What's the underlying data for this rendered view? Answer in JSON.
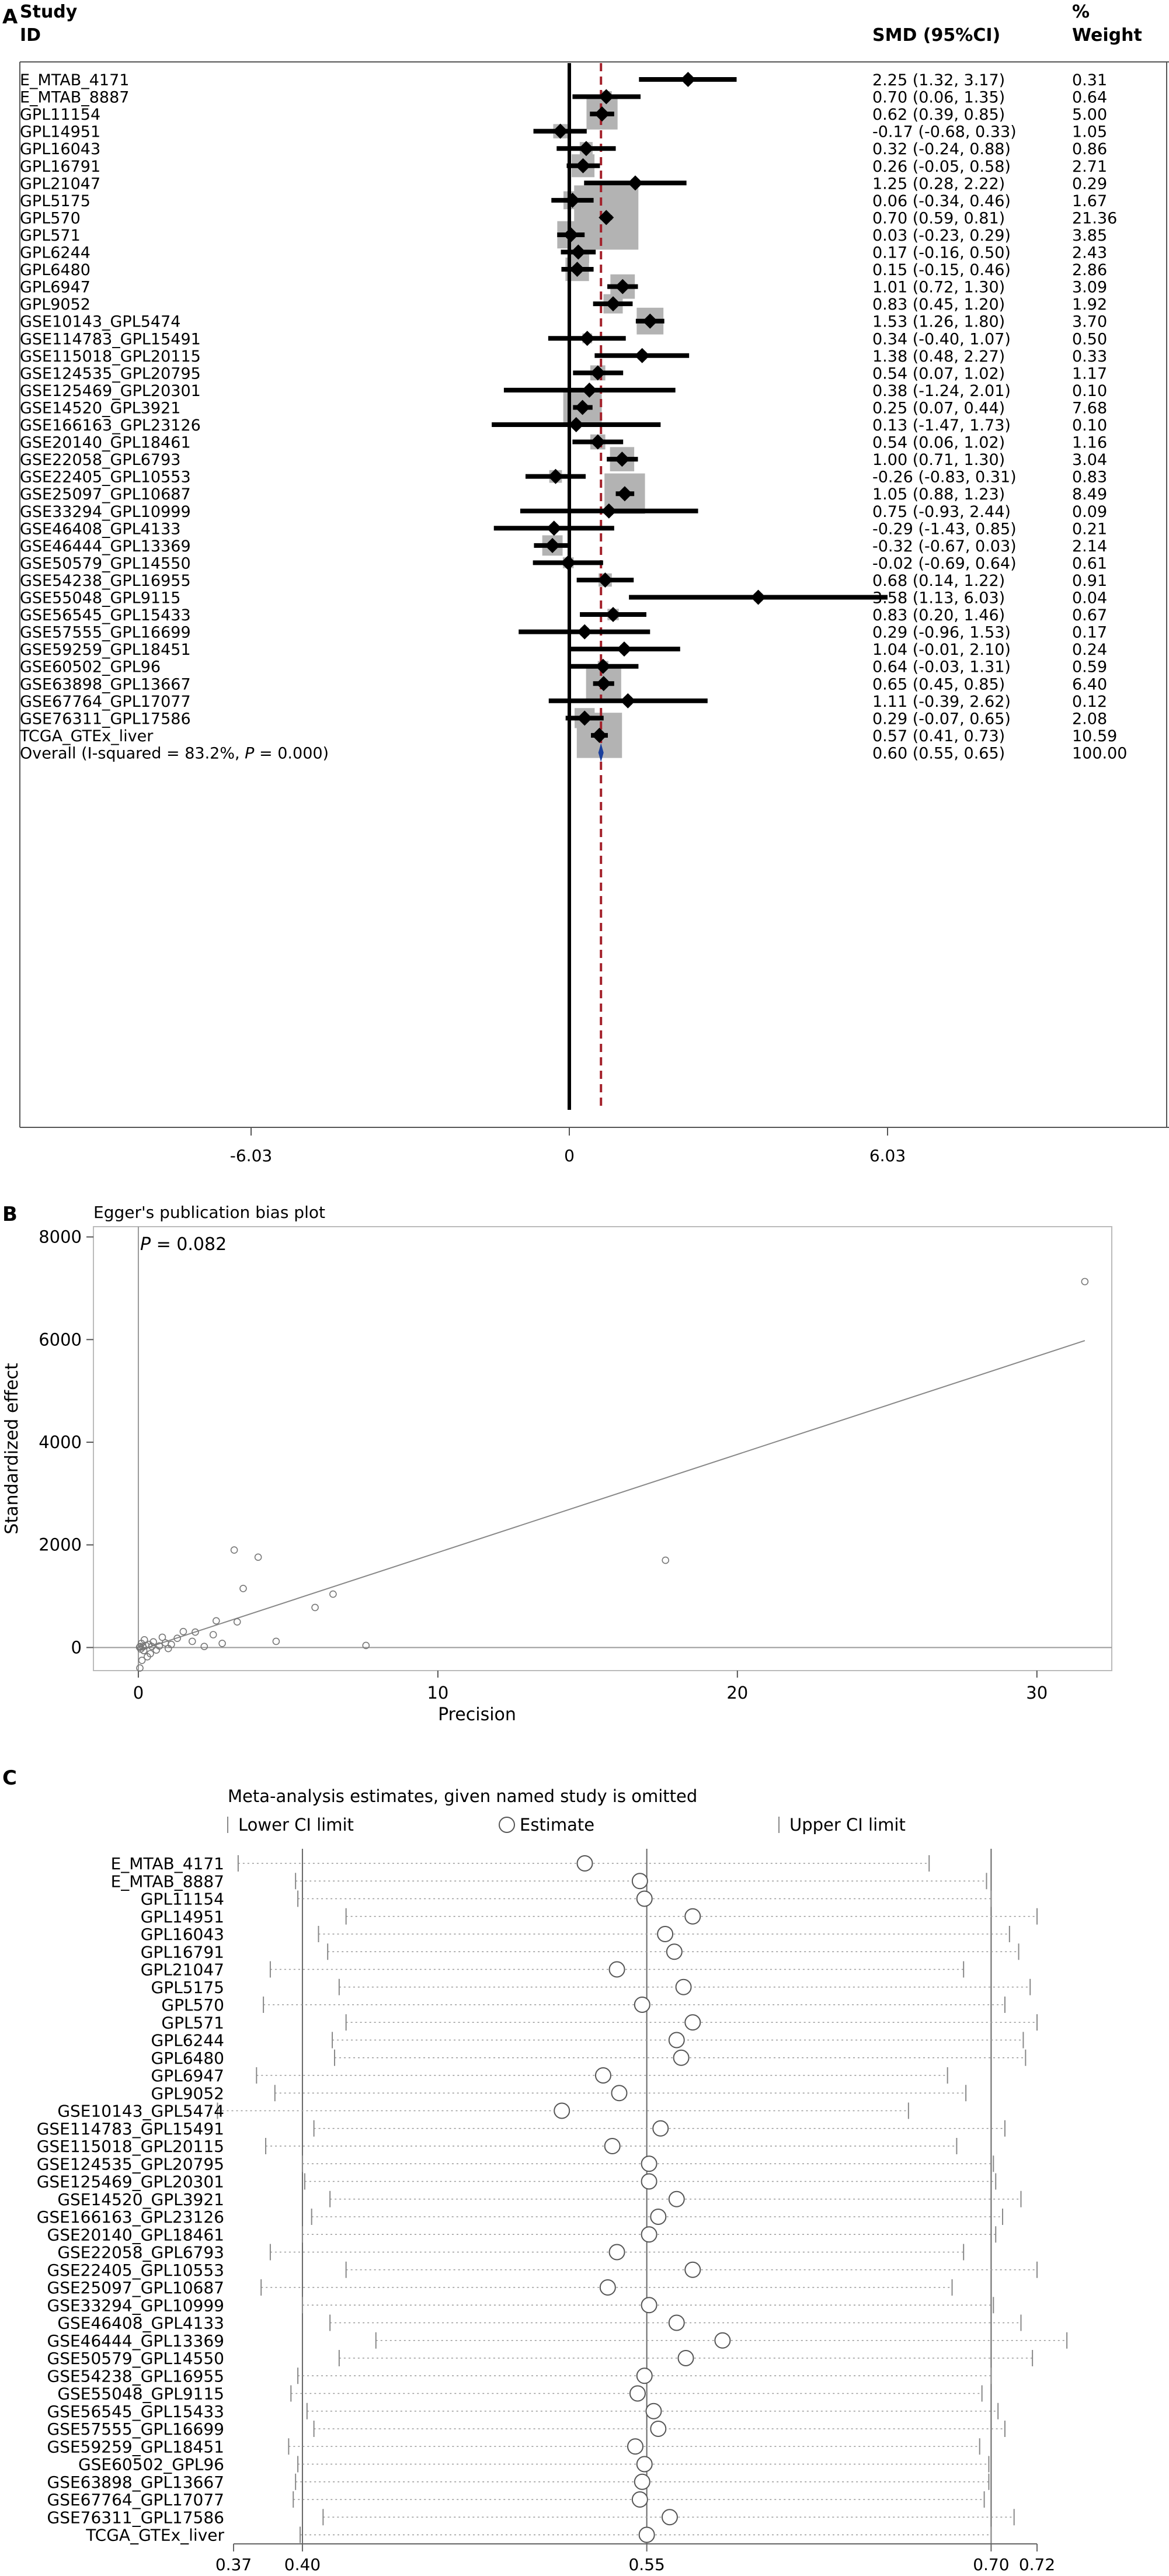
{
  "chart_data": [
    {
      "type": "forest",
      "panel_label": "A",
      "headers": {
        "study": "Study",
        "id": "ID",
        "smd": "SMD (95%CI)",
        "pct": "%",
        "weight": "Weight"
      },
      "xticks": [
        "-6.03",
        "0",
        "6.03"
      ],
      "xlim": [
        -6.03,
        6.03
      ],
      "overall_line": 0.6,
      "rows": [
        {
          "id": "E_MTAB_4171",
          "smd": 2.25,
          "lo": 1.32,
          "hi": 3.17,
          "w": 0.31,
          "ci": "2.25 (1.32, 3.17)",
          "wt": "0.31"
        },
        {
          "id": "E_MTAB_8887",
          "smd": 0.7,
          "lo": 0.06,
          "hi": 1.35,
          "w": 0.64,
          "ci": "0.70 (0.06, 1.35)",
          "wt": "0.64"
        },
        {
          "id": "GPL11154",
          "smd": 0.62,
          "lo": 0.39,
          "hi": 0.85,
          "w": 5.0,
          "ci": "0.62 (0.39, 0.85)",
          "wt": "5.00"
        },
        {
          "id": "GPL14951",
          "smd": -0.17,
          "lo": -0.68,
          "hi": 0.33,
          "w": 1.05,
          "ci": "-0.17 (-0.68, 0.33)",
          "wt": "1.05"
        },
        {
          "id": "GPL16043",
          "smd": 0.32,
          "lo": -0.24,
          "hi": 0.88,
          "w": 0.86,
          "ci": "0.32 (-0.24, 0.88)",
          "wt": "0.86"
        },
        {
          "id": "GPL16791",
          "smd": 0.26,
          "lo": -0.05,
          "hi": 0.58,
          "w": 2.71,
          "ci": "0.26 (-0.05, 0.58)",
          "wt": "2.71"
        },
        {
          "id": "GPL21047",
          "smd": 1.25,
          "lo": 0.28,
          "hi": 2.22,
          "w": 0.29,
          "ci": "1.25 (0.28, 2.22)",
          "wt": "0.29"
        },
        {
          "id": "GPL5175",
          "smd": 0.06,
          "lo": -0.34,
          "hi": 0.46,
          "w": 1.67,
          "ci": "0.06 (-0.34, 0.46)",
          "wt": "1.67"
        },
        {
          "id": "GPL570",
          "smd": 0.7,
          "lo": 0.59,
          "hi": 0.81,
          "w": 21.36,
          "ci": "0.70 (0.59, 0.81)",
          "wt": "21.36"
        },
        {
          "id": "GPL571",
          "smd": 0.03,
          "lo": -0.23,
          "hi": 0.29,
          "w": 3.85,
          "ci": "0.03 (-0.23, 0.29)",
          "wt": "3.85"
        },
        {
          "id": "GPL6244",
          "smd": 0.17,
          "lo": -0.16,
          "hi": 0.5,
          "w": 2.43,
          "ci": "0.17 (-0.16, 0.50)",
          "wt": "2.43"
        },
        {
          "id": "GPL6480",
          "smd": 0.15,
          "lo": -0.15,
          "hi": 0.46,
          "w": 2.86,
          "ci": "0.15 (-0.15, 0.46)",
          "wt": "2.86"
        },
        {
          "id": "GPL6947",
          "smd": 1.01,
          "lo": 0.72,
          "hi": 1.3,
          "w": 3.09,
          "ci": "1.01 (0.72, 1.30)",
          "wt": "3.09"
        },
        {
          "id": "GPL9052",
          "smd": 0.83,
          "lo": 0.45,
          "hi": 1.2,
          "w": 1.92,
          "ci": "0.83 (0.45, 1.20)",
          "wt": "1.92"
        },
        {
          "id": "GSE10143_GPL5474",
          "smd": 1.53,
          "lo": 1.26,
          "hi": 1.8,
          "w": 3.7,
          "ci": "1.53 (1.26, 1.80)",
          "wt": "3.70"
        },
        {
          "id": "GSE114783_GPL15491",
          "smd": 0.34,
          "lo": -0.4,
          "hi": 1.07,
          "w": 0.5,
          "ci": "0.34 (-0.40, 1.07)",
          "wt": "0.50"
        },
        {
          "id": "GSE115018_GPL20115",
          "smd": 1.38,
          "lo": 0.48,
          "hi": 2.27,
          "w": 0.33,
          "ci": "1.38 (0.48, 2.27)",
          "wt": "0.33"
        },
        {
          "id": "GSE124535_GPL20795",
          "smd": 0.54,
          "lo": 0.07,
          "hi": 1.02,
          "w": 1.17,
          "ci": "0.54 (0.07, 1.02)",
          "wt": "1.17"
        },
        {
          "id": "GSE125469_GPL20301",
          "smd": 0.38,
          "lo": -1.24,
          "hi": 2.01,
          "w": 0.1,
          "ci": "0.38 (-1.24, 2.01)",
          "wt": "0.10"
        },
        {
          "id": "GSE14520_GPL3921",
          "smd": 0.25,
          "lo": 0.07,
          "hi": 0.44,
          "w": 7.68,
          "ci": "0.25 (0.07, 0.44)",
          "wt": "7.68"
        },
        {
          "id": "GSE166163_GPL23126",
          "smd": 0.13,
          "lo": -1.47,
          "hi": 1.73,
          "w": 0.1,
          "ci": "0.13 (-1.47, 1.73)",
          "wt": "0.10"
        },
        {
          "id": "GSE20140_GPL18461",
          "smd": 0.54,
          "lo": 0.06,
          "hi": 1.02,
          "w": 1.16,
          "ci": "0.54 (0.06, 1.02)",
          "wt": "1.16"
        },
        {
          "id": "GSE22058_GPL6793",
          "smd": 1.0,
          "lo": 0.71,
          "hi": 1.3,
          "w": 3.04,
          "ci": "1.00 (0.71, 1.30)",
          "wt": "3.04"
        },
        {
          "id": "GSE22405_GPL10553",
          "smd": -0.26,
          "lo": -0.83,
          "hi": 0.31,
          "w": 0.83,
          "ci": "-0.26 (-0.83, 0.31)",
          "wt": "0.83"
        },
        {
          "id": "GSE25097_GPL10687",
          "smd": 1.05,
          "lo": 0.88,
          "hi": 1.23,
          "w": 8.49,
          "ci": "1.05 (0.88, 1.23)",
          "wt": "8.49"
        },
        {
          "id": "GSE33294_GPL10999",
          "smd": 0.75,
          "lo": -0.93,
          "hi": 2.44,
          "w": 0.09,
          "ci": "0.75 (-0.93, 2.44)",
          "wt": "0.09"
        },
        {
          "id": "GSE46408_GPL4133",
          "smd": -0.29,
          "lo": -1.43,
          "hi": 0.85,
          "w": 0.21,
          "ci": "-0.29 (-1.43, 0.85)",
          "wt": "0.21"
        },
        {
          "id": "GSE46444_GPL13369",
          "smd": -0.32,
          "lo": -0.67,
          "hi": 0.03,
          "w": 2.14,
          "ci": "-0.32 (-0.67, 0.03)",
          "wt": "2.14"
        },
        {
          "id": "GSE50579_GPL14550",
          "smd": -0.02,
          "lo": -0.69,
          "hi": 0.64,
          "w": 0.61,
          "ci": "-0.02 (-0.69, 0.64)",
          "wt": "0.61"
        },
        {
          "id": "GSE54238_GPL16955",
          "smd": 0.68,
          "lo": 0.14,
          "hi": 1.22,
          "w": 0.91,
          "ci": "0.68 (0.14, 1.22)",
          "wt": "0.91"
        },
        {
          "id": "GSE55048_GPL9115",
          "smd": 3.58,
          "lo": 1.13,
          "hi": 6.03,
          "w": 0.04,
          "ci": "3.58 (1.13, 6.03)",
          "wt": "0.04"
        },
        {
          "id": "GSE56545_GPL15433",
          "smd": 0.83,
          "lo": 0.2,
          "hi": 1.46,
          "w": 0.67,
          "ci": "0.83 (0.20, 1.46)",
          "wt": "0.67"
        },
        {
          "id": "GSE57555_GPL16699",
          "smd": 0.29,
          "lo": -0.96,
          "hi": 1.53,
          "w": 0.17,
          "ci": "0.29 (-0.96, 1.53)",
          "wt": "0.17"
        },
        {
          "id": "GSE59259_GPL18451",
          "smd": 1.04,
          "lo": -0.01,
          "hi": 2.1,
          "w": 0.24,
          "ci": "1.04 (-0.01, 2.10)",
          "wt": "0.24"
        },
        {
          "id": "GSE60502_GPL96",
          "smd": 0.64,
          "lo": -0.03,
          "hi": 1.31,
          "w": 0.59,
          "ci": "0.64 (-0.03, 1.31)",
          "wt": "0.59"
        },
        {
          "id": "GSE63898_GPL13667",
          "smd": 0.65,
          "lo": 0.45,
          "hi": 0.85,
          "w": 6.4,
          "ci": "0.65 (0.45, 0.85)",
          "wt": "6.40"
        },
        {
          "id": "GSE67764_GPL17077",
          "smd": 1.11,
          "lo": -0.39,
          "hi": 2.62,
          "w": 0.12,
          "ci": "1.11 (-0.39, 2.62)",
          "wt": "0.12"
        },
        {
          "id": "GSE76311_GPL17586",
          "smd": 0.29,
          "lo": -0.07,
          "hi": 0.65,
          "w": 2.08,
          "ci": "0.29 (-0.07, 0.65)",
          "wt": "2.08"
        },
        {
          "id": "TCGA_GTEx_liver",
          "smd": 0.57,
          "lo": 0.41,
          "hi": 0.73,
          "w": 10.59,
          "ci": "0.57 (0.41, 0.73)",
          "wt": "10.59"
        }
      ],
      "overall": {
        "label_prefix": "Overall  (I-squared = 83.2%, ",
        "label_p": "P",
        "label_suffix": " = 0.000)",
        "smd": 0.6,
        "lo": 0.55,
        "hi": 0.65,
        "ci": "0.60 (0.55, 0.65)",
        "wt": "100.00"
      }
    },
    {
      "type": "scatter",
      "panel_label": "B",
      "title": "Egger's publication bias plot",
      "annotation_p": "P",
      "annotation_val": " = 0.082",
      "xlabel": "Precision",
      "ylabel": "Standardized effect",
      "xlim": [
        -1.5,
        32.5
      ],
      "ylim": [
        -450,
        8200
      ],
      "xticks": [
        0,
        10,
        20,
        30
      ],
      "yticks": [
        0,
        2000,
        4000,
        6000,
        8000
      ],
      "regression": {
        "x0": 0,
        "y0": -60,
        "x1": 31.6,
        "y1": 5980
      },
      "points": [
        [
          31.6,
          7130
        ],
        [
          17.6,
          1700
        ],
        [
          7.6,
          40
        ],
        [
          6.5,
          1040
        ],
        [
          5.9,
          780
        ],
        [
          4.0,
          1760
        ],
        [
          3.2,
          1900
        ],
        [
          3.5,
          1150
        ],
        [
          3.3,
          500
        ],
        [
          2.5,
          250
        ],
        [
          2.8,
          80
        ],
        [
          2.2,
          20
        ],
        [
          1.8,
          120
        ],
        [
          1.5,
          310
        ],
        [
          1.3,
          180
        ],
        [
          1.1,
          60
        ],
        [
          1.0,
          -20
        ],
        [
          0.9,
          90
        ],
        [
          0.8,
          200
        ],
        [
          0.7,
          30
        ],
        [
          0.6,
          -50
        ],
        [
          0.5,
          110
        ],
        [
          0.45,
          20
        ],
        [
          0.4,
          -120
        ],
        [
          0.35,
          60
        ],
        [
          0.3,
          -180
        ],
        [
          0.25,
          40
        ],
        [
          0.2,
          150
        ],
        [
          0.18,
          -60
        ],
        [
          0.15,
          10
        ],
        [
          0.12,
          -250
        ],
        [
          0.1,
          80
        ],
        [
          0.08,
          -30
        ],
        [
          0.06,
          20
        ],
        [
          0.05,
          -400
        ],
        [
          0.04,
          5
        ],
        [
          1.9,
          300
        ],
        [
          2.6,
          520
        ],
        [
          4.6,
          120
        ]
      ]
    },
    {
      "type": "sensitivity",
      "panel_label": "C",
      "title": "Meta-analysis estimates, given named study is omitted",
      "legend": [
        "Lower CI limit",
        "Estimate",
        "Upper CI limit"
      ],
      "xlim": [
        0.37,
        0.72
      ],
      "xticks": [
        "0.37",
        "0.40",
        "0.55",
        "0.70",
        "0.72"
      ],
      "vlines": [
        0.4,
        0.55,
        0.7
      ],
      "rows": [
        {
          "id": "E_MTAB_4171",
          "est": 0.523,
          "lo": 0.372,
          "hi": 0.673
        },
        {
          "id": "E_MTAB_8887",
          "est": 0.547,
          "lo": 0.397,
          "hi": 0.698
        },
        {
          "id": "GPL11154",
          "est": 0.549,
          "lo": 0.398,
          "hi": 0.7
        },
        {
          "id": "GPL14951",
          "est": 0.57,
          "lo": 0.419,
          "hi": 0.72
        },
        {
          "id": "GPL16043",
          "est": 0.558,
          "lo": 0.407,
          "hi": 0.708
        },
        {
          "id": "GPL16791",
          "est": 0.562,
          "lo": 0.411,
          "hi": 0.712
        },
        {
          "id": "GPL21047",
          "est": 0.537,
          "lo": 0.386,
          "hi": 0.688
        },
        {
          "id": "GPL5175",
          "est": 0.566,
          "lo": 0.416,
          "hi": 0.717
        },
        {
          "id": "GPL570",
          "est": 0.548,
          "lo": 0.383,
          "hi": 0.706
        },
        {
          "id": "GPL571",
          "est": 0.57,
          "lo": 0.419,
          "hi": 0.72
        },
        {
          "id": "GPL6244",
          "est": 0.563,
          "lo": 0.413,
          "hi": 0.714
        },
        {
          "id": "GPL6480",
          "est": 0.565,
          "lo": 0.414,
          "hi": 0.715
        },
        {
          "id": "GPL6947",
          "est": 0.531,
          "lo": 0.38,
          "hi": 0.681
        },
        {
          "id": "GPL9052",
          "est": 0.538,
          "lo": 0.388,
          "hi": 0.689
        },
        {
          "id": "GSE10143_GPL5474",
          "est": 0.513,
          "lo": 0.363,
          "hi": 0.664
        },
        {
          "id": "GSE114783_GPL15491",
          "est": 0.556,
          "lo": 0.405,
          "hi": 0.706
        },
        {
          "id": "GSE115018_GPL20115",
          "est": 0.535,
          "lo": 0.384,
          "hi": 0.685
        },
        {
          "id": "GSE124535_GPL20795",
          "est": 0.551,
          "lo": 0.4,
          "hi": 0.701
        },
        {
          "id": "GSE125469_GPL20301",
          "est": 0.551,
          "lo": 0.401,
          "hi": 0.702
        },
        {
          "id": "GSE14520_GPL3921",
          "est": 0.563,
          "lo": 0.412,
          "hi": 0.713
        },
        {
          "id": "GSE166163_GPL23126",
          "est": 0.555,
          "lo": 0.404,
          "hi": 0.705
        },
        {
          "id": "GSE20140_GPL18461",
          "est": 0.551,
          "lo": 0.4,
          "hi": 0.702
        },
        {
          "id": "GSE22058_GPL6793",
          "est": 0.537,
          "lo": 0.386,
          "hi": 0.688
        },
        {
          "id": "GSE22405_GPL10553",
          "est": 0.57,
          "lo": 0.419,
          "hi": 0.72
        },
        {
          "id": "GSE25097_GPL10687",
          "est": 0.533,
          "lo": 0.382,
          "hi": 0.683
        },
        {
          "id": "GSE33294_GPL10999",
          "est": 0.551,
          "lo": 0.4,
          "hi": 0.701
        },
        {
          "id": "GSE46408_GPL4133",
          "est": 0.563,
          "lo": 0.412,
          "hi": 0.713
        },
        {
          "id": "GSE46444_GPL13369",
          "est": 0.583,
          "lo": 0.432,
          "hi": 0.733
        },
        {
          "id": "GSE50579_GPL14550",
          "est": 0.567,
          "lo": 0.416,
          "hi": 0.718
        },
        {
          "id": "GSE54238_GPL16955",
          "est": 0.549,
          "lo": 0.398,
          "hi": 0.7
        },
        {
          "id": "GSE55048_GPL9115",
          "est": 0.546,
          "lo": 0.395,
          "hi": 0.696
        },
        {
          "id": "GSE56545_GPL15433",
          "est": 0.553,
          "lo": 0.402,
          "hi": 0.703
        },
        {
          "id": "GSE57555_GPL16699",
          "est": 0.555,
          "lo": 0.405,
          "hi": 0.706
        },
        {
          "id": "GSE59259_GPL18451",
          "est": 0.545,
          "lo": 0.394,
          "hi": 0.695
        },
        {
          "id": "GSE60502_GPL96",
          "est": 0.549,
          "lo": 0.398,
          "hi": 0.699
        },
        {
          "id": "GSE63898_GPL13667",
          "est": 0.548,
          "lo": 0.397,
          "hi": 0.699
        },
        {
          "id": "GSE67764_GPL17077",
          "est": 0.547,
          "lo": 0.396,
          "hi": 0.697
        },
        {
          "id": "GSE76311_GPL17586",
          "est": 0.56,
          "lo": 0.409,
          "hi": 0.71
        },
        {
          "id": "TCGA_GTEx_liver",
          "est": 0.55,
          "lo": 0.399,
          "hi": 0.7
        }
      ]
    }
  ]
}
